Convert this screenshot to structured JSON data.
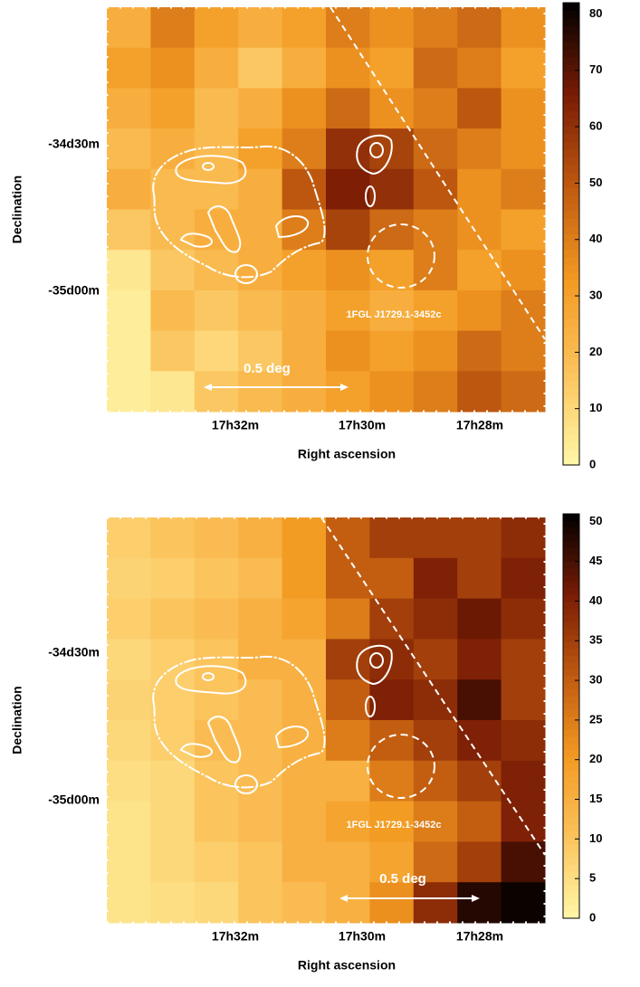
{
  "chart_data": [
    {
      "type": "heatmap",
      "ylabel": "Declination",
      "xlabel": "Right ascension",
      "xticklabels": [
        "17h32m",
        "17h30m",
        "17h28m"
      ],
      "yticklabels": [
        "-34d30m",
        "-35d00m"
      ],
      "annotations": [
        "1FGL J1729.1-3452c",
        "0.5 deg"
      ],
      "colormap": [
        "#fff7a8",
        "#fbc35c",
        "#f39a22",
        "#c05a10",
        "#7a1c05",
        "#000000"
      ],
      "zlim": [
        0,
        82
      ],
      "zticks": [
        0,
        10,
        20,
        30,
        40,
        50,
        60,
        70,
        80
      ],
      "z": [
        [
          25,
          40,
          30,
          25,
          30,
          40,
          35,
          40,
          45,
          35
        ],
        [
          30,
          35,
          25,
          15,
          25,
          35,
          30,
          45,
          40,
          30
        ],
        [
          25,
          30,
          20,
          25,
          35,
          45,
          35,
          40,
          50,
          35
        ],
        [
          20,
          25,
          20,
          30,
          40,
          60,
          55,
          45,
          40,
          35
        ],
        [
          25,
          20,
          20,
          25,
          50,
          65,
          60,
          50,
          35,
          40
        ],
        [
          15,
          20,
          25,
          25,
          40,
          55,
          45,
          40,
          35,
          30
        ],
        [
          5,
          15,
          20,
          25,
          30,
          35,
          30,
          40,
          30,
          35
        ],
        [
          3,
          20,
          15,
          20,
          25,
          30,
          25,
          30,
          35,
          40
        ],
        [
          3,
          15,
          10,
          15,
          25,
          35,
          30,
          35,
          45,
          40
        ],
        [
          3,
          5,
          15,
          20,
          25,
          30,
          35,
          40,
          50,
          45
        ]
      ]
    },
    {
      "type": "heatmap",
      "ylabel": "Declination",
      "xlabel": "Right ascension",
      "xticklabels": [
        "17h32m",
        "17h30m",
        "17h28m"
      ],
      "yticklabels": [
        "-34d30m",
        "-35d00m"
      ],
      "annotations": [
        "1FGL J1729.1-3452c",
        "0.5 deg"
      ],
      "colormap": [
        "#fff7a8",
        "#fbc35c",
        "#f39a22",
        "#c05a10",
        "#7a1c05",
        "#000000"
      ],
      "zlim": [
        0,
        51
      ],
      "zticks": [
        0,
        5,
        10,
        15,
        20,
        25,
        30,
        35,
        40,
        45,
        50
      ],
      "z": [
        [
          8,
          10,
          12,
          15,
          20,
          30,
          35,
          35,
          35,
          38
        ],
        [
          7,
          8,
          10,
          12,
          20,
          30,
          30,
          40,
          35,
          40
        ],
        [
          8,
          10,
          12,
          15,
          18,
          25,
          35,
          38,
          42,
          38
        ],
        [
          6,
          8,
          10,
          15,
          15,
          35,
          38,
          35,
          40,
          35
        ],
        [
          7,
          8,
          10,
          12,
          15,
          30,
          40,
          38,
          45,
          35
        ],
        [
          6,
          8,
          12,
          12,
          15,
          25,
          30,
          35,
          40,
          38
        ],
        [
          5,
          6,
          10,
          12,
          15,
          15,
          25,
          30,
          35,
          40
        ],
        [
          4,
          6,
          10,
          12,
          15,
          18,
          20,
          25,
          30,
          40
        ],
        [
          4,
          6,
          8,
          10,
          15,
          15,
          18,
          28,
          35,
          45
        ],
        [
          4,
          5,
          6,
          10,
          12,
          15,
          22,
          38,
          48,
          50
        ]
      ]
    }
  ]
}
